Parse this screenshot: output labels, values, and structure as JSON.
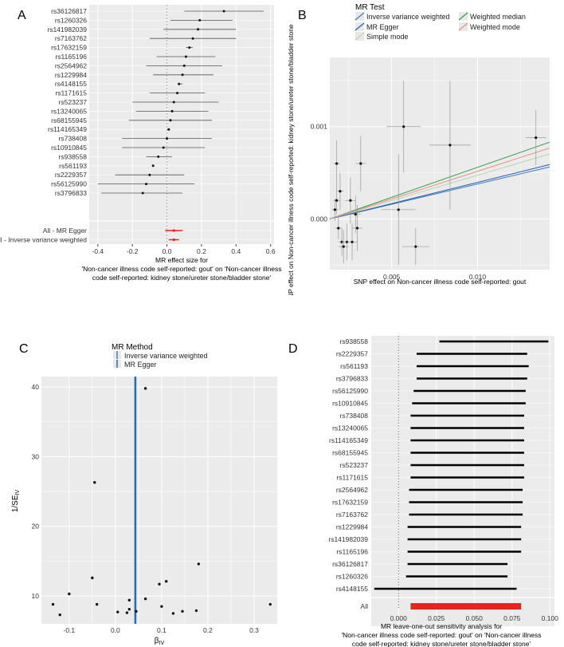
{
  "panels": {
    "A": {
      "letter": "A",
      "xlabel_lines": [
        "MR effect size for",
        "'Non-cancer illness code  self-reported: gout' on 'Non-cancer illness",
        "code  self-reported: kidney stone/ureter stone/bladder stone'"
      ]
    },
    "B": {
      "letter": "B",
      "legend_title": "MR Test",
      "legend": [
        "Inverse variance weighted",
        "MR Egger",
        "Simple mode",
        "Weighted median",
        "Weighted mode"
      ],
      "xlabel": "SNP effect on Non-cancer illness code  self-reported: gout",
      "ylabel": "SNP effect on Non-cancer illness code  self-reported: kidney stone/ureter stone/bladder stone"
    },
    "C": {
      "letter": "C",
      "legend_title": "MR Method",
      "legend": [
        "Inverse variance weighted",
        "MR Egger"
      ],
      "xlabel": "βIV",
      "ylabel": "1/SEIV"
    },
    "D": {
      "letter": "D",
      "xlabel_lines": [
        "MR leave-one-out sensitivity analysis for",
        "'Non-cancer illness code  self-reported: gout' on 'Non-cancer illness",
        "code  self-reported: kidney stone/ureter stone/bladder stone'"
      ]
    }
  },
  "colors": {
    "panel_bg": "#ebebeb",
    "grid": "#ffffff",
    "ivw": "#3b78c2",
    "egger": "#1f5fa8",
    "simple_mode": "#b6d7a8",
    "weighted_median": "#2e9e3e",
    "weighted_mode": "#e98b8b",
    "pooled": "#e8221c",
    "point": "#111111",
    "bar": "#000000"
  },
  "chart_data": [
    {
      "id": "A",
      "type": "forest",
      "snps": [
        "rs36126817",
        "rs1260326",
        "rs141982039",
        "rs7163762",
        "rs17632159",
        "rs1165196",
        "rs2564962",
        "rs1229984",
        "rs4148155",
        "rs1171615",
        "rs523237",
        "rs13240065",
        "rs68155945",
        "rs114165349",
        "rs738408",
        "rs10910845",
        "rs938558",
        "rs561193",
        "rs2229357",
        "rs56125990",
        "rs3796833"
      ],
      "estimates": [
        0.33,
        0.19,
        0.18,
        0.15,
        0.13,
        0.11,
        0.1,
        0.09,
        0.07,
        0.06,
        0.04,
        0.03,
        0.02,
        0.01,
        0.0,
        -0.02,
        -0.05,
        -0.08,
        -0.1,
        -0.12,
        -0.14
      ],
      "lower": [
        0.1,
        0.02,
        -0.02,
        -0.1,
        0.11,
        -0.06,
        -0.12,
        -0.08,
        0.06,
        -0.1,
        -0.2,
        -0.18,
        -0.22,
        0.0,
        -0.26,
        -0.26,
        -0.12,
        -0.08,
        -0.3,
        -0.4,
        -0.38
      ],
      "upper": [
        0.56,
        0.38,
        0.4,
        0.4,
        0.15,
        0.28,
        0.32,
        0.27,
        0.09,
        0.22,
        0.3,
        0.24,
        0.26,
        0.02,
        0.26,
        0.22,
        0.03,
        -0.08,
        0.1,
        0.16,
        0.09
      ],
      "pooled": [
        {
          "label": "All - MR Egger",
          "est": 0.04,
          "lower": -0.01,
          "upper": 0.09
        },
        {
          "label": "All - Inverse variance weighted",
          "est": 0.04,
          "lower": 0.01,
          "upper": 0.07
        }
      ],
      "xlim": [
        -0.45,
        0.62
      ],
      "xticks": [
        -0.4,
        -0.2,
        0.0,
        0.2,
        0.4,
        0.6
      ],
      "xtick_labels": [
        "-0.4",
        "-0.2",
        "0.0",
        "0.2",
        "0.4",
        "0.6"
      ]
    },
    {
      "id": "B",
      "type": "scatter",
      "points": [
        {
          "x": 0.0018,
          "y": 0.0006,
          "xe": 0.0002,
          "ye": 0.00025
        },
        {
          "x": 0.002,
          "y": 0.0003,
          "xe": 0.0002,
          "ye": 0.0002
        },
        {
          "x": 0.0018,
          "y": 0.0002,
          "xe": 0.0002,
          "ye": 0.00015
        },
        {
          "x": 0.0017,
          "y": 0.0001,
          "xe": 0.0002,
          "ye": 0.00012
        },
        {
          "x": 0.0019,
          "y": -0.0001,
          "xe": 0.0002,
          "ye": 0.00012
        },
        {
          "x": 0.0021,
          "y": -0.00025,
          "xe": 0.0002,
          "ye": 0.00015
        },
        {
          "x": 0.0022,
          "y": -0.0003,
          "xe": 0.0003,
          "ye": 0.00018
        },
        {
          "x": 0.0024,
          "y": -0.00025,
          "xe": 0.0003,
          "ye": 0.0002
        },
        {
          "x": 0.0026,
          "y": 0.0002,
          "xe": 0.0003,
          "ye": 0.00025
        },
        {
          "x": 0.0027,
          "y": -0.00025,
          "xe": 0.0003,
          "ye": 0.0002
        },
        {
          "x": 0.0029,
          "y": 5e-05,
          "xe": 0.0003,
          "ye": 0.0002
        },
        {
          "x": 0.0032,
          "y": 0.0006,
          "xe": 0.0003,
          "ye": 0.0003
        },
        {
          "x": 0.003,
          "y": -0.0001,
          "xe": 0.0003,
          "ye": 0.00025
        },
        {
          "x": 0.0054,
          "y": 0.0001,
          "xe": 0.001,
          "ye": 0.0006
        },
        {
          "x": 0.0057,
          "y": 0.001,
          "xe": 0.001,
          "ye": 0.0005
        },
        {
          "x": 0.0064,
          "y": -0.0003,
          "xe": 0.0008,
          "ye": 0.0002
        },
        {
          "x": 0.0084,
          "y": 0.0008,
          "xe": 0.0012,
          "ye": 0.0007
        },
        {
          "x": 0.0134,
          "y": 0.00088,
          "xe": 0.0006,
          "ye": 0.0003
        }
      ],
      "lines": [
        {
          "name": "Inverse variance weighted",
          "color_key": "ivw",
          "intercept": 0.0,
          "slope": 0.044
        },
        {
          "name": "MR Egger",
          "color_key": "egger",
          "intercept": 0.0,
          "slope": 0.046
        },
        {
          "name": "Simple mode",
          "color_key": "simple_mode",
          "intercept": 0.0,
          "slope": 0.055
        },
        {
          "name": "Weighted median",
          "color_key": "weighted_median",
          "intercept": 0.0,
          "slope": 0.065
        },
        {
          "name": "Weighted mode",
          "color_key": "weighted_mode",
          "intercept": 0.0,
          "slope": 0.06
        }
      ],
      "xlim": [
        0.0014,
        0.0142
      ],
      "ylim": [
        -0.00055,
        0.00175
      ],
      "xticks": [
        0.005,
        0.01
      ],
      "xtick_labels": [
        "0.005",
        "0.010"
      ],
      "yticks": [
        0.0,
        0.001
      ],
      "ytick_labels": [
        "0.000",
        "0.001"
      ]
    },
    {
      "id": "C",
      "type": "funnel",
      "points": [
        {
          "x": 0.065,
          "y": 39.8
        },
        {
          "x": -0.045,
          "y": 26.3
        },
        {
          "x": 0.18,
          "y": 14.6
        },
        {
          "x": -0.05,
          "y": 12.6
        },
        {
          "x": 0.11,
          "y": 12.1
        },
        {
          "x": 0.095,
          "y": 11.7
        },
        {
          "x": -0.1,
          "y": 10.3
        },
        {
          "x": 0.065,
          "y": 9.6
        },
        {
          "x": 0.03,
          "y": 9.4
        },
        {
          "x": 0.335,
          "y": 8.8
        },
        {
          "x": -0.135,
          "y": 8.8
        },
        {
          "x": -0.04,
          "y": 8.8
        },
        {
          "x": 0.1,
          "y": 8.5
        },
        {
          "x": 0.03,
          "y": 8.1
        },
        {
          "x": 0.175,
          "y": 7.9
        },
        {
          "x": 0.045,
          "y": 7.8
        },
        {
          "x": 0.145,
          "y": 7.8
        },
        {
          "x": 0.005,
          "y": 7.7
        },
        {
          "x": 0.025,
          "y": 7.6
        },
        {
          "x": 0.125,
          "y": 7.5
        },
        {
          "x": -0.12,
          "y": 7.3
        }
      ],
      "vlines": [
        {
          "name": "Inverse variance weighted",
          "color_key": "ivw",
          "x": 0.042
        },
        {
          "name": "MR Egger",
          "color_key": "egger",
          "x": 0.044
        }
      ],
      "xlim": [
        -0.16,
        0.35
      ],
      "ylim": [
        6.0,
        41.5
      ],
      "xticks": [
        -0.1,
        0.0,
        0.1,
        0.2,
        0.3
      ],
      "xtick_labels": [
        "-0.1",
        "0.0",
        "0.1",
        "0.2",
        "0.3"
      ],
      "yticks": [
        10,
        20,
        30,
        40
      ],
      "ytick_labels": [
        "10",
        "20",
        "30",
        "40"
      ]
    },
    {
      "id": "D",
      "type": "leave-one-out",
      "snps": [
        "rs938558",
        "rs2229357",
        "rs561193",
        "rs3796833",
        "rs56125990",
        "rs10910845",
        "rs738408",
        "rs13240065",
        "rs114165349",
        "rs68155945",
        "rs523237",
        "rs1171615",
        "rs2564962",
        "rs17632159",
        "rs7163762",
        "rs1229984",
        "rs141982039",
        "rs1165196",
        "rs36126817",
        "rs1260326",
        "rs4148155"
      ],
      "lower": [
        0.027,
        0.012,
        0.012,
        0.012,
        0.01,
        0.009,
        0.008,
        0.008,
        0.008,
        0.008,
        0.008,
        0.008,
        0.007,
        0.007,
        0.007,
        0.006,
        0.006,
        0.006,
        0.006,
        0.005,
        -0.016
      ],
      "upper": [
        0.099,
        0.085,
        0.086,
        0.085,
        0.084,
        0.084,
        0.083,
        0.083,
        0.083,
        0.083,
        0.083,
        0.083,
        0.082,
        0.082,
        0.082,
        0.081,
        0.081,
        0.081,
        0.072,
        0.072,
        0.078
      ],
      "all": {
        "label": "All",
        "lower": 0.008,
        "upper": 0.081
      },
      "xlim": [
        -0.018,
        0.103
      ],
      "xticks": [
        0.0,
        0.025,
        0.05,
        0.075,
        0.1
      ],
      "xtick_labels": [
        "0.000",
        "0.025",
        "0.050",
        "0.075",
        "0.100"
      ]
    }
  ]
}
